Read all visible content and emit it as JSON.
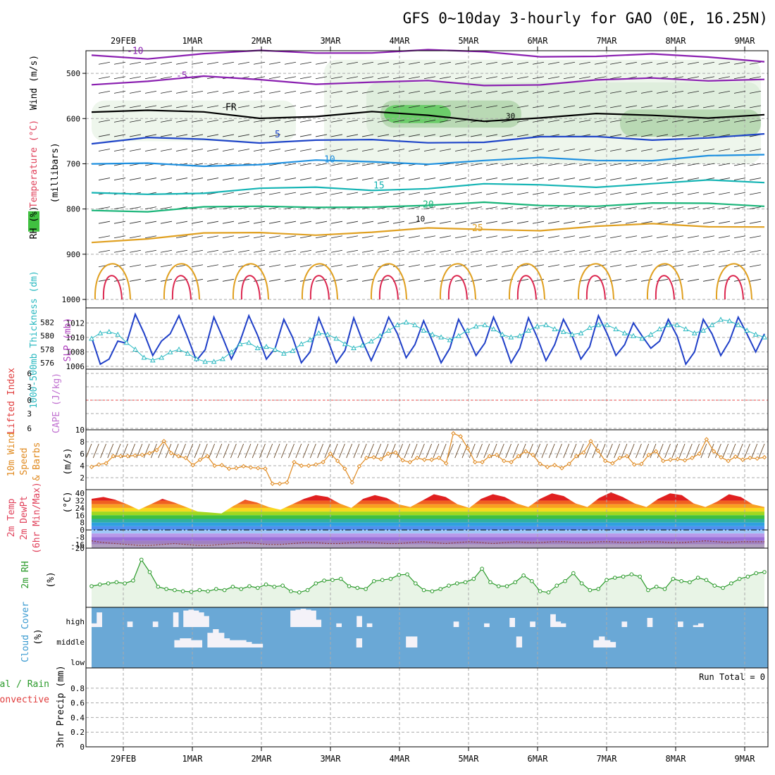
{
  "title": "GFS 0~10day 3-hourly for GAO (0E, 16.25N)",
  "colors": {
    "temp_purple": "#8a1fb0",
    "temp_black": "#000000",
    "temp_blue": "#1f45c8",
    "temp_lightblue": "#1e90e0",
    "temp_teal": "#14b4b4",
    "temp_green": "#18b478",
    "temp_orange": "#e0a020",
    "temp_red": "#dc2850",
    "slp_line": "#1f3fc8",
    "thickness_line": "#28b8c0",
    "wind10m": "#e08a20",
    "rh_fill": "#e8f4e6",
    "rh_line": "#2a9a2a",
    "cloud_blue": "#6aa8d6",
    "cloud_white": "#f4f2f8",
    "cape_line": "#ee4444"
  },
  "chart_data": [
    {
      "panel": "upper-air",
      "type": "heatmap",
      "ylabel": "(millibars)",
      "side_labels": [
        "Wind (m/s)",
        "Temperature (°C)",
        "RH (%)"
      ],
      "yticks": [
        500,
        600,
        700,
        800,
        900,
        1000
      ],
      "ylim": [
        450,
        1000
      ],
      "x_dates": [
        "29FEB",
        "1MAR",
        "2MAR",
        "3MAR",
        "4MAR",
        "5MAR",
        "6MAR",
        "7MAR",
        "8MAR",
        "9MAR"
      ],
      "temperature_contours": [
        {
          "label": "-10",
          "color": "temp_purple",
          "pressure_mb": [
            460,
            462,
            458,
            455,
            452,
            450,
            452,
            456,
            458,
            460,
            463,
            465,
            468
          ]
        },
        {
          "label": "-5",
          "color": "temp_purple",
          "pressure_mb": [
            520,
            515,
            512,
            515,
            518,
            520,
            522,
            525,
            520,
            518,
            515,
            512,
            510
          ]
        },
        {
          "label": "FR",
          "color": "temp_black",
          "pressure_mb": [
            580,
            585,
            590,
            595,
            592,
            590,
            595,
            600,
            598,
            595,
            592,
            593,
            594
          ]
        },
        {
          "label": "5",
          "color": "temp_blue",
          "pressure_mb": [
            655,
            648,
            645,
            648,
            650,
            652,
            650,
            648,
            645,
            643,
            642,
            641,
            640
          ]
        },
        {
          "label": "10",
          "color": "temp_lightblue",
          "pressure_mb": [
            705,
            702,
            700,
            700,
            698,
            696,
            695,
            694,
            692,
            690,
            688,
            686,
            684
          ]
        },
        {
          "label": "15",
          "color": "temp_teal",
          "pressure_mb": [
            770,
            765,
            760,
            758,
            756,
            754,
            752,
            750,
            748,
            746,
            744,
            742,
            740
          ]
        },
        {
          "label": "20",
          "color": "temp_green",
          "pressure_mb": [
            805,
            800,
            795,
            800,
            795,
            790,
            795,
            790,
            788,
            790,
            792,
            790,
            788
          ]
        },
        {
          "label": "25",
          "color": "temp_orange",
          "pressure_mb": [
            870,
            862,
            858,
            855,
            852,
            850,
            848,
            845,
            842,
            840,
            838,
            836,
            835
          ]
        }
      ],
      "rh_labels": [
        "10",
        "30"
      ]
    },
    {
      "panel": "slp-thickness",
      "type": "line",
      "ylabel": "SLP (mb)",
      "y2label": "1000-500mb Thickness (dm)",
      "yticks_left": [
        576,
        578,
        580,
        582
      ],
      "yticks_right": [
        1006,
        1008,
        1010,
        1012
      ],
      "ylim_right": [
        1006,
        1013.5
      ],
      "ylim_left": [
        575.5,
        583.5
      ],
      "series": [
        {
          "name": "SLP (mb)",
          "color": "slp_line",
          "values": [
            1010.0,
            1006.3,
            1007.0,
            1009.5,
            1009.2,
            1013.2,
            1010.6,
            1007.5,
            1009.5,
            1010.5,
            1013.0,
            1010.0,
            1006.8,
            1008.3,
            1012.8,
            1010.0,
            1007.0,
            1009.5,
            1013.0,
            1010.3,
            1007.0,
            1008.5,
            1012.5,
            1010.0,
            1006.5,
            1008.0,
            1012.7,
            1009.7,
            1006.5,
            1008.2,
            1012.7,
            1009.5,
            1006.8,
            1009.5,
            1012.8,
            1010.5,
            1007.2,
            1009.0,
            1012.3,
            1009.5,
            1006.5,
            1008.5,
            1012.5,
            1010.2,
            1007.5,
            1009.2,
            1012.8,
            1010.0,
            1006.5,
            1008.5,
            1012.7,
            1010.0,
            1006.8,
            1009.0,
            1012.5,
            1010.2,
            1007.0,
            1008.7,
            1013.0,
            1010.5,
            1007.5,
            1009.0,
            1012.0,
            1010.2,
            1008.5,
            1009.5,
            1012.5,
            1010.2,
            1006.3,
            1008.0,
            1012.5,
            1010.5,
            1007.5,
            1009.5,
            1012.8,
            1010.5,
            1008.0,
            1010.5
          ]
        },
        {
          "name": "1000-500mb Thickness (dm)",
          "color": "thickness_line",
          "values": [
            579.6,
            580.4,
            580.6,
            580.2,
            579.0,
            578.0,
            576.8,
            576.4,
            576.8,
            577.6,
            578.0,
            577.4,
            576.6,
            576.2,
            576.2,
            576.6,
            577.6,
            578.8,
            579.0,
            578.2,
            578.4,
            578.0,
            577.4,
            577.8,
            578.8,
            579.4,
            580.4,
            580.2,
            579.6,
            578.8,
            578.2,
            578.6,
            579.2,
            580.0,
            580.8,
            581.6,
            582.0,
            581.6,
            580.8,
            580.2,
            579.8,
            579.4,
            580.0,
            580.8,
            581.4,
            581.6,
            581.0,
            580.2,
            579.8,
            580.0,
            580.8,
            581.4,
            581.6,
            581.0,
            580.6,
            580.2,
            580.4,
            581.2,
            581.6,
            581.6,
            581.0,
            580.4,
            580.0,
            579.6,
            580.2,
            581.0,
            581.6,
            581.6,
            581.0,
            580.4,
            580.8,
            581.6,
            582.4,
            582.2,
            581.6,
            580.8,
            580.2,
            579.8
          ]
        }
      ]
    },
    {
      "panel": "cape-lifted-index",
      "type": "line",
      "ylabel": "CAPE (J/kg)",
      "y2label": "Lifted Index",
      "yticks": [
        "6",
        "3",
        "0",
        "3",
        "6"
      ],
      "y2ticks": [
        "10"
      ],
      "series": [
        {
          "name": "Lifted Index",
          "color": "cape_line",
          "values": [
            0,
            0
          ]
        }
      ]
    },
    {
      "panel": "wind10m",
      "type": "line",
      "ylabel": "(m/s)",
      "side_labels": [
        "10m Wind",
        "Speed",
        "& Barbs"
      ],
      "yticks": [
        2,
        4,
        6,
        8
      ],
      "ylim": [
        0,
        10
      ],
      "series": [
        {
          "name": "10m Wind Speed",
          "color": "wind10m",
          "values": [
            3.8,
            4.2,
            4.4,
            5.6,
            5.6,
            5.6,
            5.7,
            5.8,
            6.1,
            6.6,
            8.1,
            6.1,
            5.6,
            5.3,
            4.1,
            5.0,
            5.6,
            4.0,
            4.1,
            3.5,
            3.6,
            3.9,
            3.7,
            3.6,
            3.5,
            1.0,
            1.0,
            1.2,
            4.6,
            4.0,
            4.0,
            4.2,
            4.6,
            6.0,
            4.8,
            3.5,
            1.2,
            3.9,
            5.3,
            5.4,
            5.1,
            6.0,
            6.2,
            4.9,
            4.6,
            5.3,
            5.0,
            5.0,
            5.3,
            4.4,
            9.4,
            8.9,
            6.9,
            4.6,
            4.6,
            5.6,
            5.8,
            4.8,
            4.6,
            5.6,
            6.4,
            5.8,
            4.3,
            3.8,
            4.1,
            3.6,
            4.3,
            5.6,
            6.2,
            8.1,
            6.5,
            4.8,
            4.4,
            5.3,
            5.6,
            4.2,
            4.3,
            5.8,
            6.4,
            4.8,
            5.0,
            5.1,
            4.9,
            5.3,
            6.0,
            8.4,
            6.4,
            5.4,
            4.8,
            5.5,
            5.0,
            5.3,
            5.2,
            5.4
          ]
        }
      ]
    },
    {
      "panel": "2m-temperature",
      "type": "area",
      "ylabel": "(°C)",
      "side_labels": [
        "2m Temp",
        "2m DewPt",
        "(6hr Min/Max)"
      ],
      "yticks": [
        "40",
        "32",
        "24",
        "16",
        "8",
        "0",
        "-8",
        "-16",
        "-20"
      ],
      "ylim": [
        -20,
        44
      ],
      "series": [
        {
          "name": "2m Temp",
          "values": [
            34,
            36,
            33,
            28,
            22,
            28,
            34,
            30,
            25,
            20,
            19,
            18,
            26,
            33,
            30,
            25,
            22,
            28,
            34,
            38,
            36,
            29,
            24,
            34,
            38,
            35,
            28,
            25,
            32,
            39,
            36,
            28,
            24,
            34,
            39,
            36,
            29,
            25,
            34,
            40,
            37,
            29,
            25,
            35,
            41,
            36,
            29,
            25,
            34,
            40,
            38,
            29,
            25,
            31,
            39,
            36,
            28,
            25
          ]
        },
        {
          "name": "2m DewPt",
          "values": [
            -12,
            -14,
            -15,
            -16,
            -17,
            -17,
            -16,
            -15,
            -16,
            -17,
            -17,
            -16,
            -15,
            -14,
            -15,
            -16,
            -16,
            -15,
            -14,
            -14,
            -15,
            -15,
            -14,
            -13,
            -14,
            -15,
            -15,
            -14,
            -13,
            -14,
            -15,
            -14,
            -13,
            -14,
            -15,
            -14,
            -13,
            -14,
            -14,
            -13,
            -13,
            -14,
            -14,
            -13,
            -13,
            -14,
            -14,
            -13,
            -13,
            -14,
            -14,
            -13,
            -12,
            -13,
            -14,
            -13,
            -13,
            -13
          ]
        }
      ]
    },
    {
      "panel": "2m-rh",
      "type": "area",
      "ylabel": "(%)",
      "side_labels": [
        "2m RH"
      ],
      "ylim": [
        0,
        100
      ],
      "series": [
        {
          "name": "2m RH",
          "color": "rh_line",
          "values": [
            35,
            38,
            40,
            42,
            40,
            45,
            82,
            60,
            34,
            30,
            28,
            26,
            25,
            28,
            26,
            30,
            28,
            34,
            30,
            35,
            32,
            38,
            34,
            36,
            26,
            24,
            28,
            40,
            45,
            46,
            48,
            35,
            32,
            30,
            44,
            46,
            48,
            55,
            56,
            40,
            28,
            26,
            30,
            36,
            40,
            42,
            48,
            66,
            42,
            35,
            35,
            42,
            54,
            44,
            26,
            24,
            36,
            44,
            58,
            40,
            28,
            30,
            46,
            50,
            52,
            56,
            52,
            28,
            34,
            30,
            48,
            44,
            42,
            50,
            46,
            36,
            32,
            40,
            48,
            52,
            58,
            60
          ]
        }
      ]
    },
    {
      "panel": "cloud-cover",
      "type": "heatmap",
      "ylabel": "(%)",
      "side_labels": [
        "Cloud Cover"
      ],
      "rows": [
        "high",
        "middle",
        "low"
      ],
      "high_cover": [
        20,
        80,
        0,
        0,
        0,
        0,
        0,
        30,
        0,
        0,
        0,
        0,
        30,
        0,
        0,
        0,
        80,
        0,
        90,
        95,
        90,
        80,
        60,
        0,
        0,
        0,
        0,
        0,
        0,
        0,
        0,
        0,
        0,
        0,
        0,
        0,
        0,
        0,
        0,
        90,
        95,
        100,
        95,
        90,
        40,
        0,
        0,
        0,
        20,
        0,
        0,
        0,
        60,
        0,
        20,
        0,
        0,
        0,
        0,
        0,
        0,
        0,
        0,
        0,
        0,
        0,
        0,
        0,
        0,
        0,
        0,
        30,
        0,
        0,
        0,
        0,
        0,
        20,
        0,
        0,
        0,
        0,
        50,
        0,
        0,
        0,
        30,
        0,
        0,
        0,
        70,
        30,
        20,
        0,
        0,
        0,
        0,
        0,
        0,
        0,
        0,
        0,
        0,
        0,
        30,
        0,
        0,
        0,
        0,
        50,
        0,
        0,
        0,
        0,
        0,
        30,
        0,
        0,
        10,
        20,
        0,
        0,
        0,
        0,
        0,
        0,
        0,
        0,
        0,
        0,
        0,
        0
      ],
      "mid_cover": [
        0,
        0,
        0,
        0,
        0,
        0,
        0,
        0,
        0,
        0,
        0,
        0,
        0,
        0,
        0,
        40,
        50,
        50,
        40,
        40,
        0,
        80,
        100,
        80,
        50,
        40,
        40,
        40,
        30,
        20,
        20,
        0,
        0,
        0,
        0,
        0,
        0,
        0,
        0,
        0,
        0,
        0,
        0,
        0,
        0,
        0,
        0,
        0,
        50,
        0,
        0,
        0,
        0,
        0,
        0,
        0,
        0,
        60,
        60,
        0,
        0,
        0,
        0,
        0,
        0,
        0,
        0,
        0,
        0,
        0,
        0,
        0,
        0,
        0,
        0,
        0,
        0,
        60,
        0,
        0,
        0,
        0,
        0,
        0,
        0,
        0,
        0,
        0,
        0,
        0,
        0,
        40,
        60,
        40,
        30,
        0,
        0,
        0,
        0,
        0,
        0,
        0,
        0,
        0,
        0,
        0,
        0,
        0,
        0,
        0,
        0,
        0,
        0,
        0,
        0,
        0,
        0,
        0,
        0,
        0,
        0,
        0
      ]
    },
    {
      "panel": "precip",
      "type": "bar",
      "ylabel": "3hr Precip (mm)",
      "side_labels": [
        "Total / Rain",
        "Convective"
      ],
      "yticks": [
        "0",
        "0.2",
        "0.4",
        "0.6",
        "0.8"
      ],
      "ylim": [
        0,
        1
      ],
      "annotation": "Run Total = 0",
      "x_dates": [
        "29FEB",
        "1MAR",
        "2MAR",
        "3MAR",
        "4MAR",
        "5MAR",
        "6MAR",
        "7MAR",
        "8MAR",
        "9MAR"
      ]
    }
  ]
}
